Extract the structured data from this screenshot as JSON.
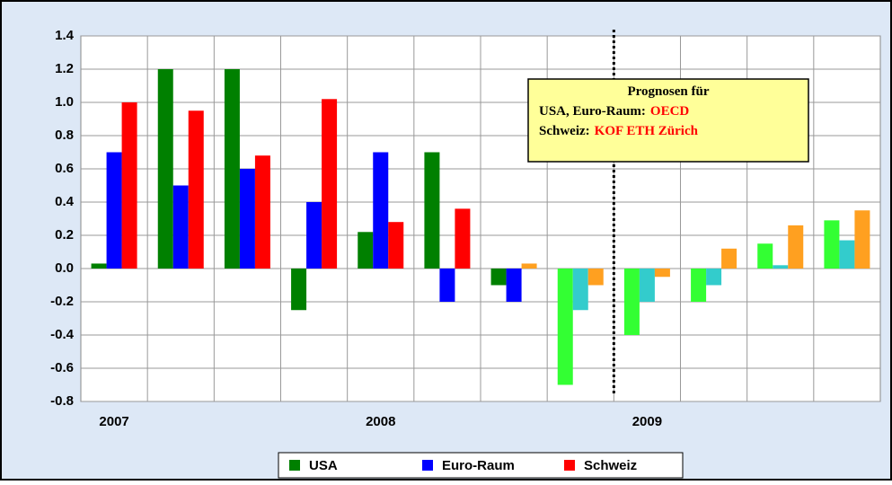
{
  "chart_data": {
    "type": "bar",
    "categories": [
      "2007",
      null,
      null,
      null,
      "2008",
      null,
      null,
      null,
      "2009",
      null,
      null,
      null
    ],
    "series": [
      {
        "name": "USA",
        "color": "#008000",
        "colors": [
          "#008000",
          "#008000",
          "#008000",
          "#008000",
          "#008000",
          "#008000",
          "#008000",
          "#33ff33",
          "#33ff33",
          "#33ff33",
          "#33ff33",
          "#33ff33"
        ],
        "values": [
          0.03,
          1.2,
          1.2,
          -0.25,
          0.22,
          0.7,
          -0.1,
          -0.7,
          -0.4,
          -0.2,
          0.15,
          0.29
        ]
      },
      {
        "name": "Euro-Raum",
        "color": "#0000ff",
        "colors": [
          "#0000ff",
          "#0000ff",
          "#0000ff",
          "#0000ff",
          "#0000ff",
          "#0000ff",
          "#0000ff",
          "#33cccc",
          "#33cccc",
          "#33cccc",
          "#33cccc",
          "#33cccc"
        ],
        "values": [
          0.7,
          0.5,
          0.6,
          0.4,
          0.7,
          -0.2,
          -0.2,
          -0.25,
          -0.2,
          -0.1,
          0.02,
          0.17
        ]
      },
      {
        "name": "Schweiz",
        "color": "#ff0000",
        "colors": [
          "#ff0000",
          "#ff0000",
          "#ff0000",
          "#ff0000",
          "#ff0000",
          "#ff0000",
          "#ffa020",
          "#ffa020",
          "#ffa020",
          "#ffa020",
          "#ffa020",
          "#ffa020"
        ],
        "values": [
          1.0,
          0.95,
          0.68,
          1.02,
          0.28,
          0.36,
          0.03,
          -0.1,
          -0.05,
          0.12,
          0.26,
          0.35
        ]
      }
    ],
    "ylim": [
      -0.8,
      1.4
    ],
    "yticks": [
      {
        "value": -0.8,
        "label": "-0.8"
      },
      {
        "value": -0.6,
        "label": "-0.6"
      },
      {
        "value": -0.4,
        "label": "-0.4"
      },
      {
        "value": -0.2,
        "label": "-0.2"
      },
      {
        "value": 0,
        "label": "0.0"
      },
      {
        "value": 0.2,
        "label": "0.2"
      },
      {
        "value": 0.4,
        "label": "0.4"
      },
      {
        "value": 0.6,
        "label": "0.6"
      },
      {
        "value": 0.8,
        "label": "0.8"
      },
      {
        "value": 1,
        "label": "1.0"
      },
      {
        "value": 1.2,
        "label": "1.2"
      },
      {
        "value": 1.4,
        "label": "1.4"
      }
    ],
    "grid": true,
    "annotation": {
      "lines": [
        {
          "text": "Prognosen für"
        },
        {
          "text": "USA, Euro-Raum:",
          "highlight": "OECD"
        },
        {
          "text": "Schweiz:",
          "highlight": "KOF ETH Zürich"
        }
      ],
      "highlight_color": "#ff0000"
    }
  }
}
